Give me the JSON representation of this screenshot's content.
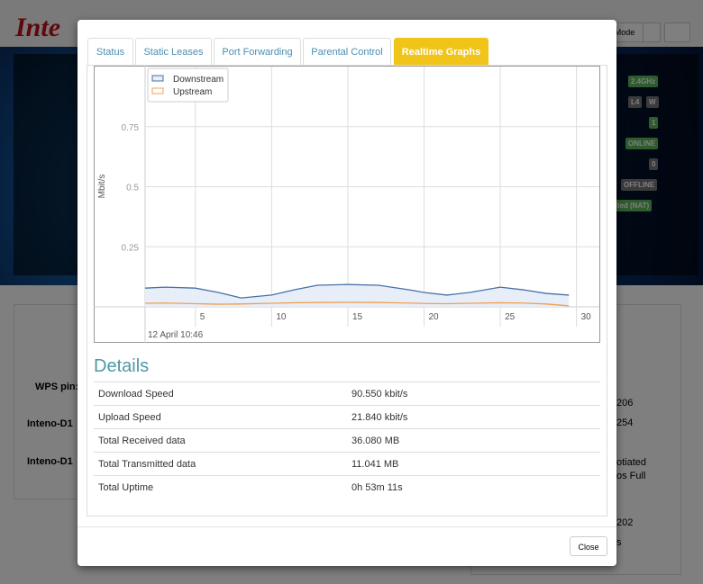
{
  "background": {
    "logo": "Inte",
    "mode_button": "Mode",
    "badges": [
      "2.4GHz",
      "L4",
      "W",
      "1",
      "ONLINE",
      "0",
      "OFFLINE",
      "outed (NAT)"
    ],
    "left_panel": {
      "wps_label": "WPS pin:",
      "devices": [
        "Inteno-D1",
        "Inteno-D1"
      ]
    },
    "right_panel": [
      "206",
      "254",
      "otiated",
      "os Full",
      "202",
      "s"
    ]
  },
  "modal": {
    "tabs": [
      "Status",
      "Static Leases",
      "Port Forwarding",
      "Parental Control",
      "Realtime Graphs"
    ],
    "active_tab": 4,
    "graph": {
      "type": "line",
      "y_label": "Mbit/s",
      "x_label": "12 April 10:46",
      "xlim": [
        1.7,
        31.5
      ],
      "ylim": [
        0,
        1
      ],
      "xticks": [
        5,
        10,
        15,
        20,
        25,
        30
      ],
      "yticks": [
        0.25,
        0.5,
        0.75
      ],
      "grid": true,
      "legend": "top-left",
      "x": [
        1.7,
        3,
        5,
        6.5,
        8,
        10,
        11.5,
        13,
        15,
        17,
        19,
        20,
        21.5,
        23,
        25,
        26.5,
        28,
        29.5
      ],
      "series": [
        {
          "name": "Downstream",
          "color": "#4572a7",
          "fill": "#e8eef7",
          "values": [
            0.078,
            0.082,
            0.078,
            0.06,
            0.037,
            0.049,
            0.071,
            0.09,
            0.093,
            0.09,
            0.071,
            0.06,
            0.049,
            0.06,
            0.082,
            0.071,
            0.056,
            0.049
          ]
        },
        {
          "name": "Upstream",
          "color": "#f0a050",
          "values": [
            0.015,
            0.016,
            0.013,
            0.011,
            0.012,
            0.015,
            0.017,
            0.018,
            0.019,
            0.018,
            0.016,
            0.014,
            0.013,
            0.015,
            0.017,
            0.016,
            0.012,
            0.004
          ]
        }
      ]
    },
    "details": {
      "title": "Details",
      "rows": [
        [
          "Download Speed",
          "90.550 kbit/s"
        ],
        [
          "Upload Speed",
          "21.840 kbit/s"
        ],
        [
          "Total Received data",
          "36.080 MB"
        ],
        [
          "Total Transmitted data",
          "11.041 MB"
        ],
        [
          "Total Uptime",
          "0h 53m 11s"
        ]
      ]
    },
    "close_button": "Close"
  }
}
